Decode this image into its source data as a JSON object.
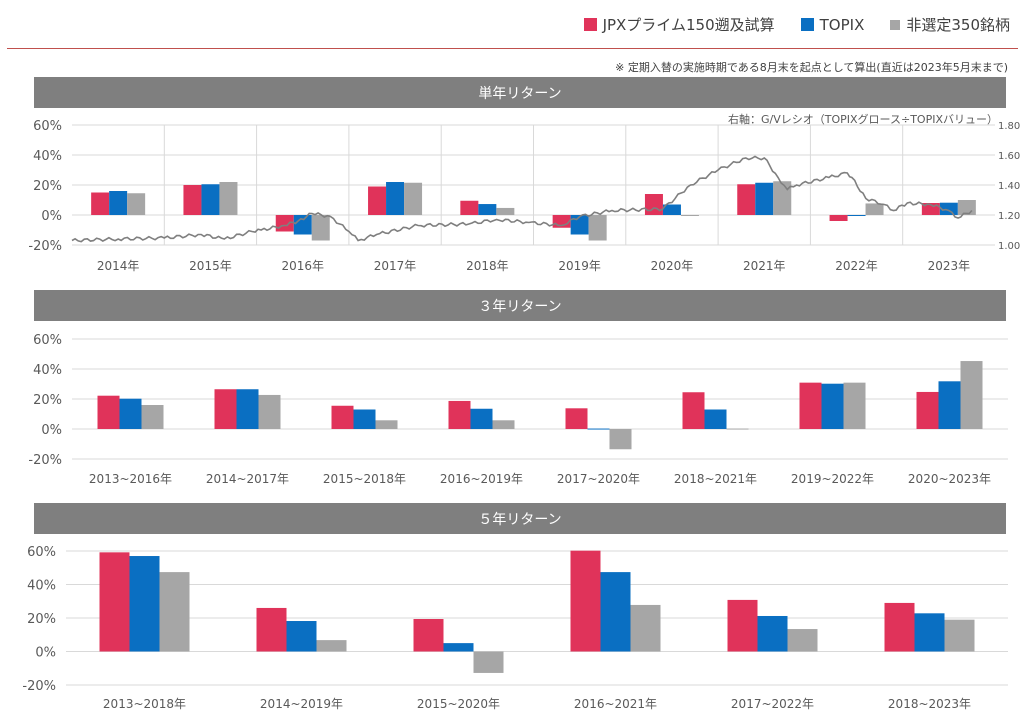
{
  "legend": [
    {
      "label": "JPXプライム150遡及試算",
      "color": "#E0335A"
    },
    {
      "label": "TOPIX",
      "color": "#0A6FC2"
    },
    {
      "label": "非選定350銘柄",
      "color": "#A6A6A6"
    }
  ],
  "note": "※ 定期入替の実施時期である8月末を起点として算出(直近は2023年5月末まで)",
  "right_axis_note": "右軸：G/Vレシオ（TOPIXグロース÷TOPIXバリュー）",
  "chart_data": [
    {
      "type": "bar",
      "title": "単年リターン",
      "categories": [
        "2014年",
        "2015年",
        "2016年",
        "2017年",
        "2018年",
        "2019年",
        "2020年",
        "2021年",
        "2022年",
        "2023年"
      ],
      "series": [
        {
          "name": "JPXプライム150遡及試算",
          "values": [
            15,
            20,
            -11,
            19,
            9.5,
            -8.5,
            14,
            20.5,
            -4,
            8
          ]
        },
        {
          "name": "TOPIX",
          "values": [
            16,
            20.5,
            -13,
            22,
            7.3,
            -13,
            7,
            21.5,
            -0.3,
            8.2
          ]
        },
        {
          "name": "非選定350銘柄",
          "values": [
            14.5,
            22,
            -17,
            21.5,
            4.7,
            -17,
            -0.5,
            22.5,
            7.7,
            10
          ]
        }
      ],
      "ylim": [
        -20,
        60
      ],
      "yticks": [
        "60%",
        "40%",
        "20%",
        "0%",
        "-20%"
      ],
      "ytick_values": [
        60,
        40,
        20,
        0,
        -20
      ],
      "y2lim": [
        1.0,
        1.8
      ],
      "y2ticks": [
        "1.80",
        "1.60",
        "1.40",
        "1.20",
        "1.00"
      ],
      "y2tick_values": [
        1.8,
        1.6,
        1.4,
        1.2,
        1.0
      ],
      "line": {
        "name": "G/Vレシオ",
        "x": [
          0,
          0.5,
          1,
          1.4,
          1.65,
          1.95,
          2.05,
          2.3,
          2.45,
          2.6,
          2.8,
          3.0,
          3.1,
          3.3,
          3.75,
          4.3,
          4.6,
          4.95,
          5.3,
          5.5,
          5.85,
          6.4,
          6.7,
          7.0,
          7.3,
          7.5,
          7.65,
          7.75,
          7.85,
          8.2,
          8.4,
          8.45,
          8.6,
          8.8,
          8.9,
          9.05,
          9.3,
          9.5,
          9.6,
          9.75
        ],
        "values": [
          1.03,
          1.04,
          1.047,
          1.07,
          1.04,
          1.09,
          1.1,
          1.13,
          1.16,
          1.21,
          1.19,
          1.09,
          1.03,
          1.07,
          1.13,
          1.14,
          1.17,
          1.15,
          1.13,
          1.19,
          1.23,
          1.24,
          1.4,
          1.5,
          1.58,
          1.58,
          1.45,
          1.37,
          1.4,
          1.45,
          1.48,
          1.45,
          1.31,
          1.27,
          1.23,
          1.28,
          1.27,
          1.23,
          1.18,
          1.23
        ]
      },
      "grid": true
    },
    {
      "type": "bar",
      "title": "３年リターン",
      "categories": [
        "2013~2016年",
        "2014~2017年",
        "2015~2018年",
        "2016~2019年",
        "2017~2020年",
        "2018~2021年",
        "2019~2022年",
        "2020~2023年"
      ],
      "series": [
        {
          "name": "JPXプライム150遡及試算",
          "values": [
            22.2,
            26.5,
            15.5,
            18.7,
            13.8,
            24.5,
            30.9,
            24.7
          ]
        },
        {
          "name": "TOPIX",
          "values": [
            20.2,
            26.5,
            13,
            13.5,
            0.3,
            13,
            30.2,
            31.8
          ]
        },
        {
          "name": "非選定350銘柄",
          "values": [
            16,
            22.7,
            5.8,
            5.8,
            -13.5,
            0.3,
            30.9,
            45.3
          ]
        }
      ],
      "ylim": [
        -20,
        60
      ],
      "yticks": [
        "60%",
        "40%",
        "20%",
        "0%",
        "-20%"
      ],
      "ytick_values": [
        60,
        40,
        20,
        0,
        -20
      ],
      "grid": true
    },
    {
      "type": "bar",
      "title": "５年リターン",
      "categories": [
        "2013~2018年",
        "2014~2019年",
        "2015~2020年",
        "2016~2021年",
        "2017~2022年",
        "2018~2023年"
      ],
      "series": [
        {
          "name": "JPXプライム150遡及試算",
          "values": [
            59.2,
            26,
            19.4,
            60.2,
            30.8,
            29
          ]
        },
        {
          "name": "TOPIX",
          "values": [
            57,
            18.2,
            5,
            47.4,
            21.2,
            22.8
          ]
        },
        {
          "name": "非選定350銘柄",
          "values": [
            47.4,
            6.8,
            -12.8,
            27.8,
            13.4,
            19
          ]
        }
      ],
      "ylim": [
        -20,
        60
      ],
      "yticks": [
        "60%",
        "40%",
        "20%",
        "0%",
        "-20%"
      ],
      "ytick_values": [
        60,
        40,
        20,
        0,
        -20
      ],
      "grid": true
    }
  ]
}
